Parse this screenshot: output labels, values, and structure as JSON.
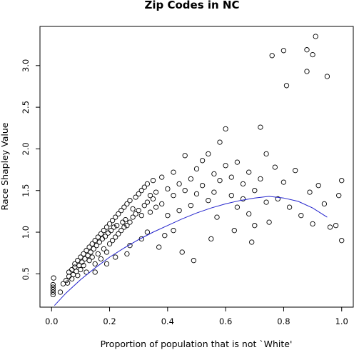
{
  "chart_data": {
    "type": "scatter",
    "title": "Zip Codes in NC",
    "xlabel": "Proportion of population that is not `White'",
    "ylabel": "Race Shapley Value",
    "xlim": [
      -0.04,
      1.04
    ],
    "ylim": [
      0.1,
      3.47
    ],
    "x_ticks": [
      0.0,
      0.2,
      0.4,
      0.6,
      0.8,
      1.0
    ],
    "x_tick_labels": [
      "0.0",
      "0.2",
      "0.4",
      "0.6",
      "0.8",
      "1.0"
    ],
    "y_ticks": [
      0.5,
      1.0,
      1.5,
      2.0,
      2.5,
      3.0
    ],
    "y_tick_labels": [
      "0.5",
      "1.0",
      "1.5",
      "2.0",
      "2.5",
      "3.0"
    ],
    "grid": false,
    "legend": "none",
    "point_color": "#000000",
    "trend_color": "#2222cc",
    "points": [
      [
        0.005,
        0.25
      ],
      [
        0.005,
        0.28
      ],
      [
        0.005,
        0.31
      ],
      [
        0.005,
        0.34
      ],
      [
        0.005,
        0.37
      ],
      [
        0.007,
        0.45
      ],
      [
        0.03,
        0.28
      ],
      [
        0.04,
        0.38
      ],
      [
        0.05,
        0.42
      ],
      [
        0.055,
        0.39
      ],
      [
        0.06,
        0.47
      ],
      [
        0.06,
        0.52
      ],
      [
        0.07,
        0.44
      ],
      [
        0.07,
        0.55
      ],
      [
        0.075,
        0.49
      ],
      [
        0.08,
        0.58
      ],
      [
        0.08,
        0.62
      ],
      [
        0.085,
        0.53
      ],
      [
        0.09,
        0.66
      ],
      [
        0.09,
        0.48
      ],
      [
        0.095,
        0.6
      ],
      [
        0.1,
        0.7
      ],
      [
        0.1,
        0.55
      ],
      [
        0.105,
        0.64
      ],
      [
        0.11,
        0.74
      ],
      [
        0.11,
        0.6
      ],
      [
        0.115,
        0.68
      ],
      [
        0.12,
        0.78
      ],
      [
        0.12,
        0.52
      ],
      [
        0.125,
        0.72
      ],
      [
        0.13,
        0.82
      ],
      [
        0.13,
        0.66
      ],
      [
        0.135,
        0.76
      ],
      [
        0.14,
        0.86
      ],
      [
        0.14,
        0.7
      ],
      [
        0.145,
        0.8
      ],
      [
        0.15,
        0.9
      ],
      [
        0.15,
        0.62
      ],
      [
        0.155,
        0.84
      ],
      [
        0.16,
        0.94
      ],
      [
        0.16,
        0.74
      ],
      [
        0.165,
        0.88
      ],
      [
        0.17,
        0.98
      ],
      [
        0.17,
        0.68
      ],
      [
        0.175,
        0.92
      ],
      [
        0.18,
        1.02
      ],
      [
        0.18,
        0.8
      ],
      [
        0.185,
        0.95
      ],
      [
        0.19,
        1.06
      ],
      [
        0.19,
        0.76
      ],
      [
        0.195,
        0.99
      ],
      [
        0.2,
        1.1
      ],
      [
        0.2,
        0.86
      ],
      [
        0.205,
        1.02
      ],
      [
        0.21,
        1.14
      ],
      [
        0.21,
        0.9
      ],
      [
        0.215,
        1.06
      ],
      [
        0.22,
        1.18
      ],
      [
        0.22,
        0.94
      ],
      [
        0.225,
        1.08
      ],
      [
        0.23,
        1.22
      ],
      [
        0.23,
        0.98
      ],
      [
        0.24,
        1.26
      ],
      [
        0.24,
        1.02
      ],
      [
        0.245,
        1.12
      ],
      [
        0.25,
        1.3
      ],
      [
        0.25,
        1.06
      ],
      [
        0.255,
        1.15
      ],
      [
        0.26,
        1.34
      ],
      [
        0.26,
        1.08
      ],
      [
        0.27,
        1.38
      ],
      [
        0.27,
        1.12
      ],
      [
        0.28,
        1.28
      ],
      [
        0.28,
        1.18
      ],
      [
        0.29,
        1.42
      ],
      [
        0.29,
        1.22
      ],
      [
        0.3,
        1.46
      ],
      [
        0.3,
        1.26
      ],
      [
        0.31,
        1.5
      ],
      [
        0.31,
        1.2
      ],
      [
        0.32,
        1.54
      ],
      [
        0.32,
        1.32
      ],
      [
        0.33,
        1.58
      ],
      [
        0.33,
        1.36
      ],
      [
        0.34,
        1.44
      ],
      [
        0.34,
        1.24
      ],
      [
        0.35,
        1.62
      ],
      [
        0.35,
        1.4
      ],
      [
        0.36,
        1.48
      ],
      [
        0.36,
        1.3
      ],
      [
        0.38,
        1.66
      ],
      [
        0.38,
        1.34
      ],
      [
        0.4,
        1.52
      ],
      [
        0.4,
        1.2
      ],
      [
        0.42,
        1.72
      ],
      [
        0.42,
        1.44
      ],
      [
        0.44,
        1.58
      ],
      [
        0.44,
        1.26
      ],
      [
        0.46,
        1.92
      ],
      [
        0.46,
        1.5
      ],
      [
        0.48,
        1.64
      ],
      [
        0.48,
        1.32
      ],
      [
        0.5,
        1.76
      ],
      [
        0.5,
        1.46
      ],
      [
        0.52,
        1.86
      ],
      [
        0.52,
        1.56
      ],
      [
        0.54,
        1.94
      ],
      [
        0.54,
        1.38
      ],
      [
        0.56,
        1.7
      ],
      [
        0.56,
        1.48
      ],
      [
        0.58,
        2.08
      ],
      [
        0.58,
        1.62
      ],
      [
        0.6,
        2.24
      ],
      [
        0.6,
        1.8
      ],
      [
        0.62,
        1.66
      ],
      [
        0.62,
        1.44
      ],
      [
        0.64,
        1.84
      ],
      [
        0.64,
        1.3
      ],
      [
        0.66,
        1.58
      ],
      [
        0.66,
        1.4
      ],
      [
        0.68,
        1.72
      ],
      [
        0.68,
        1.22
      ],
      [
        0.7,
        1.5
      ],
      [
        0.7,
        1.08
      ],
      [
        0.72,
        2.26
      ],
      [
        0.72,
        1.64
      ],
      [
        0.74,
        1.94
      ],
      [
        0.74,
        1.36
      ],
      [
        0.75,
        1.12
      ],
      [
        0.76,
        3.12
      ],
      [
        0.77,
        1.78
      ],
      [
        0.78,
        1.4
      ],
      [
        0.8,
        3.18
      ],
      [
        0.8,
        1.6
      ],
      [
        0.81,
        2.76
      ],
      [
        0.82,
        1.3
      ],
      [
        0.84,
        1.74
      ],
      [
        0.86,
        1.2
      ],
      [
        0.88,
        3.19
      ],
      [
        0.88,
        2.93
      ],
      [
        0.89,
        1.48
      ],
      [
        0.9,
        3.13
      ],
      [
        0.9,
        1.1
      ],
      [
        0.91,
        3.35
      ],
      [
        0.92,
        1.56
      ],
      [
        0.94,
        1.34
      ],
      [
        0.95,
        2.87
      ],
      [
        0.96,
        1.06
      ],
      [
        0.98,
        1.08
      ],
      [
        0.99,
        1.44
      ],
      [
        1.0,
        0.9
      ],
      [
        1.0,
        1.62
      ],
      [
        0.15,
        0.52
      ],
      [
        0.22,
        0.7
      ],
      [
        0.27,
        0.84
      ],
      [
        0.33,
        1.0
      ],
      [
        0.37,
        0.82
      ],
      [
        0.42,
        1.02
      ],
      [
        0.49,
        0.66
      ],
      [
        0.55,
        0.92
      ],
      [
        0.63,
        1.02
      ],
      [
        0.69,
        0.88
      ],
      [
        0.19,
        0.62
      ],
      [
        0.26,
        0.74
      ],
      [
        0.31,
        0.92
      ],
      [
        0.39,
        0.96
      ],
      [
        0.45,
        0.76
      ],
      [
        0.57,
        1.18
      ]
    ],
    "trend_line": [
      [
        0.01,
        0.12
      ],
      [
        0.05,
        0.27
      ],
      [
        0.1,
        0.43
      ],
      [
        0.15,
        0.57
      ],
      [
        0.2,
        0.7
      ],
      [
        0.25,
        0.81
      ],
      [
        0.3,
        0.91
      ],
      [
        0.35,
        1.0
      ],
      [
        0.4,
        1.08
      ],
      [
        0.45,
        1.16
      ],
      [
        0.5,
        1.23
      ],
      [
        0.55,
        1.29
      ],
      [
        0.6,
        1.34
      ],
      [
        0.65,
        1.38
      ],
      [
        0.7,
        1.41
      ],
      [
        0.75,
        1.43
      ],
      [
        0.8,
        1.41
      ],
      [
        0.85,
        1.37
      ],
      [
        0.9,
        1.29
      ],
      [
        0.95,
        1.18
      ]
    ]
  }
}
